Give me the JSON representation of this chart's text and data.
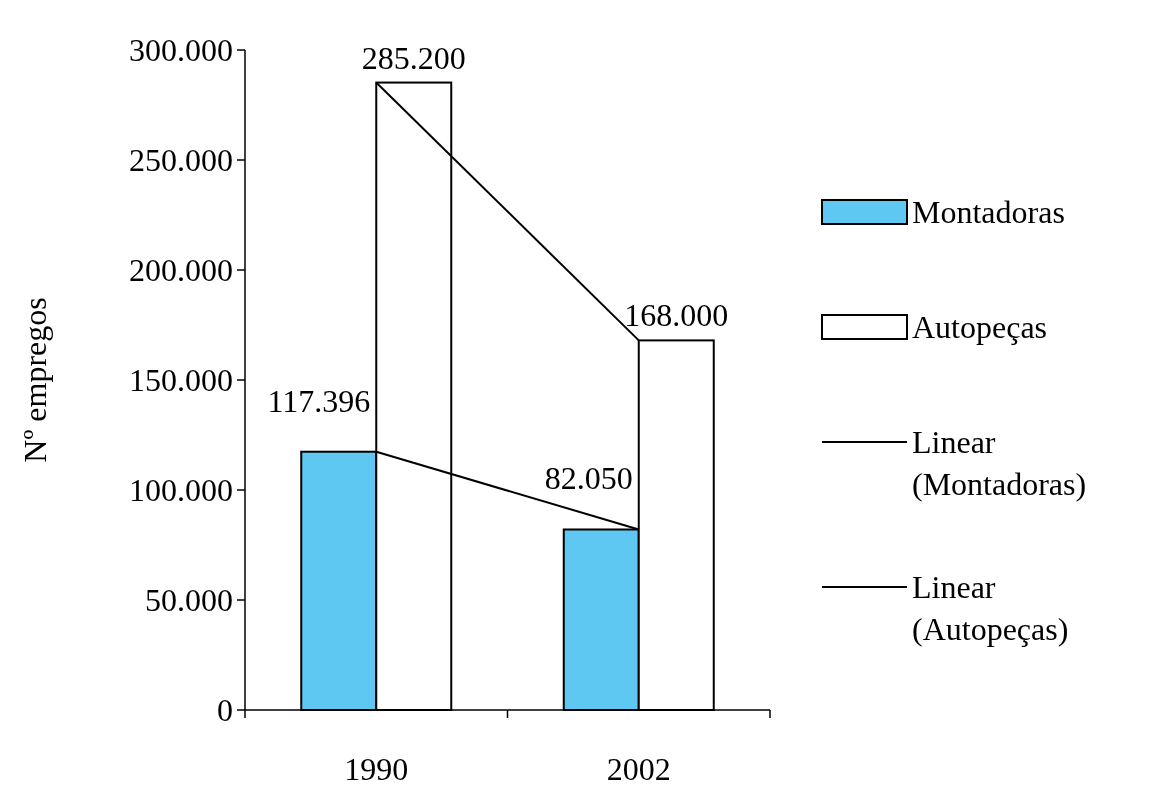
{
  "chart_data": {
    "type": "bar",
    "ylabel": "Nº empregos",
    "categories": [
      "1990",
      "2002"
    ],
    "series": [
      {
        "name": "Montadoras",
        "color": "#5ec8f2",
        "values": [
          117396,
          82050
        ],
        "value_labels": [
          "117.396",
          "82.050"
        ]
      },
      {
        "name": "Autopeças",
        "color": "#ffffff",
        "values": [
          285200,
          168000
        ],
        "value_labels": [
          "285.200",
          "168.000"
        ]
      },
      {
        "name": "Linear (Montadoras)",
        "type": "line",
        "color": "#000000",
        "values": [
          117396,
          82050
        ]
      },
      {
        "name": "Linear (Autopeças)",
        "type": "line",
        "color": "#000000",
        "values": [
          285200,
          168000
        ]
      }
    ],
    "ylim": [
      0,
      300000
    ],
    "yticks": [
      {
        "value": 0,
        "label": "0"
      },
      {
        "value": 50000,
        "label": "50.000"
      },
      {
        "value": 100000,
        "label": "100.000"
      },
      {
        "value": 150000,
        "label": "150.000"
      },
      {
        "value": 200000,
        "label": "200.000"
      },
      {
        "value": 250000,
        "label": "250.000"
      },
      {
        "value": 300000,
        "label": "300.000"
      }
    ],
    "legend": "right",
    "grid": false
  }
}
